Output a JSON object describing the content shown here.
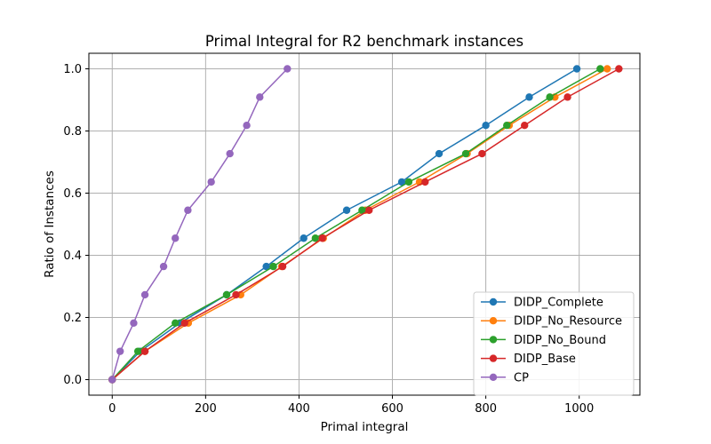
{
  "chart_data": {
    "type": "line",
    "title": "Primal Integral for R2 benchmark instances",
    "xlabel": "Primal integral",
    "ylabel": "Ratio of Instances",
    "xlim": [
      -50,
      1130
    ],
    "ylim": [
      -0.05,
      1.05
    ],
    "xticks": [
      0,
      200,
      400,
      600,
      800,
      1000
    ],
    "yticks": [
      0.0,
      0.2,
      0.4,
      0.6,
      0.8,
      1.0
    ],
    "xtick_labels": [
      "0",
      "200",
      "400",
      "600",
      "800",
      "1000"
    ],
    "ytick_labels": [
      "0.0",
      "0.2",
      "0.4",
      "0.6",
      "0.8",
      "1.0"
    ],
    "grid": true,
    "legend_position": "bottom-right",
    "series": [
      {
        "name": "DIDP_Complete",
        "color": "#1f77b4",
        "x": [
          0,
          60,
          145,
          245,
          330,
          410,
          502,
          620,
          700,
          800,
          893,
          995
        ],
        "y": [
          0.0,
          0.091,
          0.182,
          0.273,
          0.364,
          0.455,
          0.545,
          0.636,
          0.727,
          0.818,
          0.909,
          1.0
        ]
      },
      {
        "name": "DIDP_No_Resource",
        "color": "#ff7f0e",
        "x": [
          0,
          70,
          163,
          275,
          363,
          452,
          542,
          658,
          760,
          850,
          948,
          1060
        ]
      },
      {
        "name": "DIDP_No_Bound",
        "color": "#2ca02c",
        "x": [
          0,
          55,
          135,
          245,
          345,
          435,
          535,
          635,
          757,
          845,
          937,
          1045
        ]
      },
      {
        "name": "DIDP_Base",
        "color": "#d62728",
        "x": [
          0,
          70,
          155,
          265,
          365,
          450,
          550,
          670,
          792,
          883,
          975,
          1085
        ]
      },
      {
        "name": "CP",
        "color": "#9467bd",
        "x": [
          0,
          17,
          46,
          70,
          110,
          135,
          162,
          212,
          252,
          288,
          316,
          375
        ]
      }
    ]
  }
}
